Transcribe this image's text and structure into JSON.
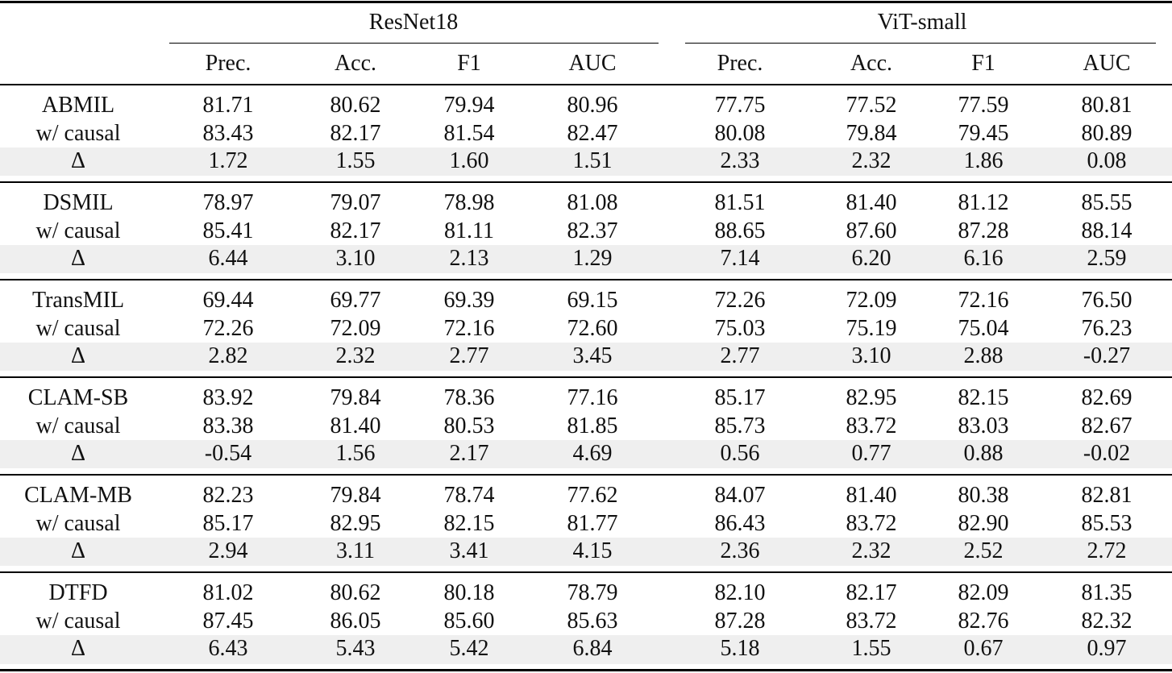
{
  "header": {
    "groups": [
      "ResNet18",
      "ViT-small"
    ],
    "columns": [
      "Prec.",
      "Acc.",
      "F1",
      "AUC",
      "Prec.",
      "Acc.",
      "F1",
      "AUC"
    ]
  },
  "blocks": [
    {
      "method": "ABMIL",
      "rows": [
        {
          "label": "ABMIL",
          "values": [
            "81.71",
            "80.62",
            "79.94",
            "80.96",
            "77.75",
            "77.52",
            "77.59",
            "80.81"
          ]
        },
        {
          "label": "w/ causal",
          "values": [
            "83.43",
            "82.17",
            "81.54",
            "82.47",
            "80.08",
            "79.84",
            "79.45",
            "80.89"
          ]
        },
        {
          "label": "Δ",
          "values": [
            "1.72",
            "1.55",
            "1.60",
            "1.51",
            "2.33",
            "2.32",
            "1.86",
            "0.08"
          ]
        }
      ]
    },
    {
      "method": "DSMIL",
      "rows": [
        {
          "label": "DSMIL",
          "values": [
            "78.97",
            "79.07",
            "78.98",
            "81.08",
            "81.51",
            "81.40",
            "81.12",
            "85.55"
          ]
        },
        {
          "label": "w/ causal",
          "values": [
            "85.41",
            "82.17",
            "81.11",
            "82.37",
            "88.65",
            "87.60",
            "87.28",
            "88.14"
          ]
        },
        {
          "label": "Δ",
          "values": [
            "6.44",
            "3.10",
            "2.13",
            "1.29",
            "7.14",
            "6.20",
            "6.16",
            "2.59"
          ]
        }
      ]
    },
    {
      "method": "TransMIL",
      "rows": [
        {
          "label": "TransMIL",
          "values": [
            "69.44",
            "69.77",
            "69.39",
            "69.15",
            "72.26",
            "72.09",
            "72.16",
            "76.50"
          ]
        },
        {
          "label": "w/ causal",
          "values": [
            "72.26",
            "72.09",
            "72.16",
            "72.60",
            "75.03",
            "75.19",
            "75.04",
            "76.23"
          ]
        },
        {
          "label": "Δ",
          "values": [
            "2.82",
            "2.32",
            "2.77",
            "3.45",
            "2.77",
            "3.10",
            "2.88",
            "-0.27"
          ]
        }
      ]
    },
    {
      "method": "CLAM-SB",
      "rows": [
        {
          "label": "CLAM-SB",
          "values": [
            "83.92",
            "79.84",
            "78.36",
            "77.16",
            "85.17",
            "82.95",
            "82.15",
            "82.69"
          ]
        },
        {
          "label": "w/ causal",
          "values": [
            "83.38",
            "81.40",
            "80.53",
            "81.85",
            "85.73",
            "83.72",
            "83.03",
            "82.67"
          ]
        },
        {
          "label": "Δ",
          "values": [
            "-0.54",
            "1.56",
            "2.17",
            "4.69",
            "0.56",
            "0.77",
            "0.88",
            "-0.02"
          ]
        }
      ]
    },
    {
      "method": "CLAM-MB",
      "rows": [
        {
          "label": "CLAM-MB",
          "values": [
            "82.23",
            "79.84",
            "78.74",
            "77.62",
            "84.07",
            "81.40",
            "80.38",
            "82.81"
          ]
        },
        {
          "label": "w/ causal",
          "values": [
            "85.17",
            "82.95",
            "82.15",
            "81.77",
            "86.43",
            "83.72",
            "82.90",
            "85.53"
          ]
        },
        {
          "label": "Δ",
          "values": [
            "2.94",
            "3.11",
            "3.41",
            "4.15",
            "2.36",
            "2.32",
            "2.52",
            "2.72"
          ]
        }
      ]
    },
    {
      "method": "DTFD",
      "rows": [
        {
          "label": "DTFD",
          "values": [
            "81.02",
            "80.62",
            "80.18",
            "78.79",
            "82.10",
            "82.17",
            "82.09",
            "81.35"
          ]
        },
        {
          "label": "w/ causal",
          "values": [
            "87.45",
            "86.05",
            "85.60",
            "85.63",
            "87.28",
            "83.72",
            "82.76",
            "82.32"
          ]
        },
        {
          "label": "Δ",
          "values": [
            "6.43",
            "5.43",
            "5.42",
            "6.84",
            "5.18",
            "1.55",
            "0.67",
            "0.97"
          ]
        }
      ]
    }
  ]
}
